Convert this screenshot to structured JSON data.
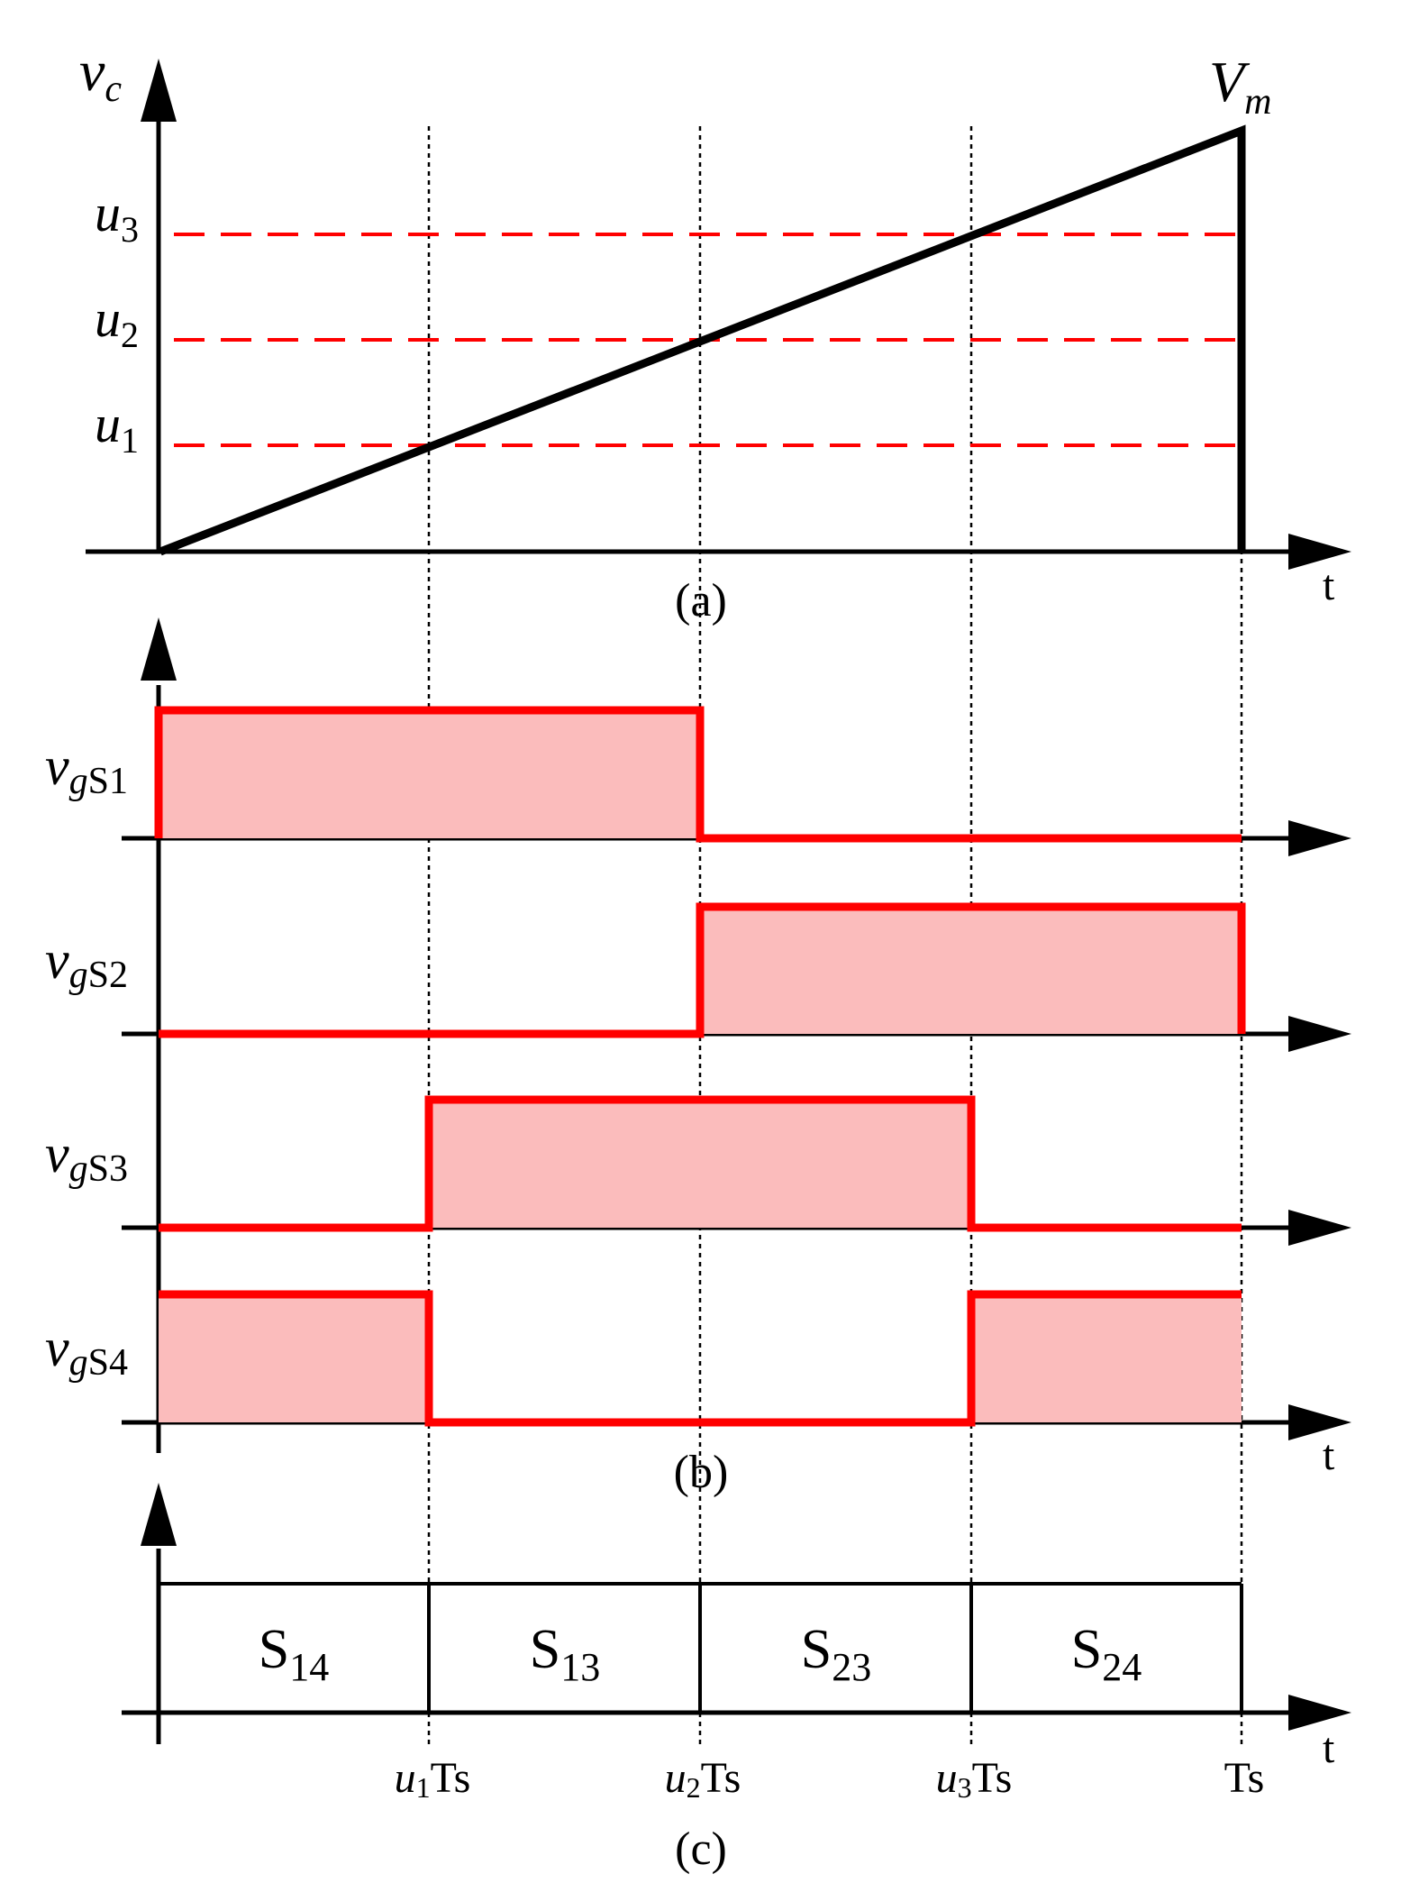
{
  "panel_a": {
    "y_axis_label": {
      "main": "v",
      "sub": "c"
    },
    "peak_label": {
      "main": "V",
      "sub": "m"
    },
    "levels": [
      {
        "main": "u",
        "sub": "3"
      },
      {
        "main": "u",
        "sub": "2"
      },
      {
        "main": "u",
        "sub": "1"
      }
    ],
    "t_label": "t",
    "caption": "(a)"
  },
  "panel_b": {
    "signals": [
      {
        "main": "v",
        "sub_italic": "g",
        "sub": "S1"
      },
      {
        "main": "v",
        "sub_italic": "g",
        "sub": "S2"
      },
      {
        "main": "v",
        "sub_italic": "g",
        "sub": "S3"
      },
      {
        "main": "v",
        "sub_italic": "g",
        "sub": "S4"
      }
    ],
    "t_label": "t",
    "caption": "(b)"
  },
  "panel_c": {
    "states": [
      {
        "main": "S",
        "sub": "14"
      },
      {
        "main": "S",
        "sub": "13"
      },
      {
        "main": "S",
        "sub": "23"
      },
      {
        "main": "S",
        "sub": "24"
      }
    ],
    "ticks": [
      {
        "var": "u",
        "sub": "1",
        "rest": "Ts"
      },
      {
        "var": "u",
        "sub": "2",
        "rest": "Ts"
      },
      {
        "var": "u",
        "sub": "3",
        "rest": "Ts"
      },
      {
        "var": "",
        "sub": "",
        "rest": "Ts"
      }
    ],
    "t_label": "t",
    "caption": "(c)"
  },
  "colors": {
    "reference": "#ff0000",
    "pulse": "#ff0000",
    "pulse_fill": "#fbbcbc",
    "axes": "#000000"
  }
}
